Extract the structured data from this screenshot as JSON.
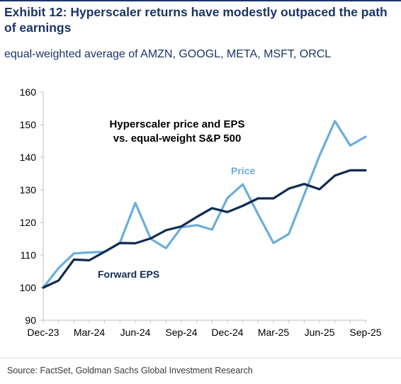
{
  "header": {
    "title": "Exhibit 12: Hyperscaler returns have modestly outpaced the path of earnings",
    "subtitle": "equal-weighted average of AMZN, GOOGL, META, MSFT, ORCL"
  },
  "footer": {
    "source": "Source: FactSet, Goldman Sachs Global Investment Research"
  },
  "colors": {
    "price": "#6aaedc",
    "eps": "#0f2b50",
    "axis": "#bfbfbf",
    "text": "#000000"
  },
  "chart_data": {
    "type": "line",
    "title": "Hyperscaler price and EPS vs. equal-weight S&P 500",
    "title_lines": [
      "Hyperscaler price and EPS",
      "vs. equal-weight S&P 500"
    ],
    "x": [
      "Dec-23",
      "Jan-24",
      "Feb-24",
      "Mar-24",
      "Apr-24",
      "May-24",
      "Jun-24",
      "Jul-24",
      "Aug-24",
      "Sep-24",
      "Oct-24",
      "Nov-24",
      "Dec-24",
      "Jan-25",
      "Feb-25",
      "Mar-25",
      "Apr-25",
      "May-25",
      "Jun-25",
      "Jul-25",
      "Aug-25",
      "Sep-25"
    ],
    "x_tick_labels": [
      "Dec-23",
      "Mar-24",
      "Jun-24",
      "Sep-24",
      "Dec-24",
      "Mar-25",
      "Jun-25",
      "Sep-25"
    ],
    "ylim": [
      90,
      160
    ],
    "y_ticks": [
      90,
      100,
      110,
      120,
      130,
      140,
      150,
      160
    ],
    "grid": false,
    "series": [
      {
        "name": "Price",
        "color": "#6aaedc",
        "values": [
          100,
          106,
          110.5,
          110.8,
          111,
          113.8,
          126,
          115,
          112.1,
          118.5,
          119.2,
          117.8,
          127.5,
          131.7,
          122.5,
          113.7,
          116.5,
          128.5,
          140.5,
          151.1,
          143.6,
          146.3
        ]
      },
      {
        "name": "Forward EPS",
        "color": "#0f2b50",
        "values": [
          100,
          102.2,
          108.6,
          108.4,
          111,
          113.7,
          113.6,
          115.1,
          117.6,
          118.8,
          121.7,
          124.4,
          123.2,
          125.1,
          127.4,
          127.4,
          130.4,
          131.8,
          130.2,
          134.4,
          136,
          136
        ]
      }
    ]
  }
}
